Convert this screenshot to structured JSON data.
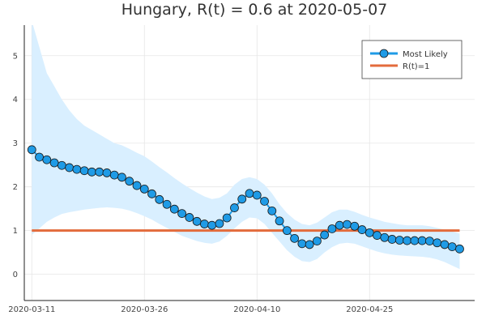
{
  "chart_data": {
    "type": "line",
    "title": "Hungary, R(t) = 0.6 at 2020-05-07",
    "xlabel": "",
    "ylabel": "",
    "x_start": "2020-03-11",
    "x_end": "2020-05-07",
    "xlim": [
      "2020-03-10",
      "2020-05-09"
    ],
    "ylim": [
      -0.6,
      5.7
    ],
    "xticks": [
      "2020-03-11",
      "2020-03-26",
      "2020-04-10",
      "2020-04-25"
    ],
    "yticks": [
      0,
      1,
      2,
      3,
      4,
      5
    ],
    "grid": true,
    "legend_position": "top-right",
    "series": [
      {
        "name": "Most Likely",
        "color": "#1f9be6",
        "marker": "circle",
        "values": [
          2.85,
          2.68,
          2.62,
          2.55,
          2.49,
          2.44,
          2.4,
          2.37,
          2.34,
          2.34,
          2.32,
          2.27,
          2.22,
          2.13,
          2.03,
          1.95,
          1.84,
          1.71,
          1.6,
          1.49,
          1.39,
          1.3,
          1.21,
          1.15,
          1.12,
          1.16,
          1.29,
          1.52,
          1.72,
          1.85,
          1.81,
          1.67,
          1.45,
          1.22,
          1.0,
          0.82,
          0.7,
          0.68,
          0.76,
          0.9,
          1.04,
          1.12,
          1.14,
          1.1,
          1.02,
          0.95,
          0.89,
          0.84,
          0.8,
          0.78,
          0.77,
          0.77,
          0.77,
          0.76,
          0.72,
          0.68,
          0.63,
          0.58
        ]
      },
      {
        "name": "R(t)=1",
        "color": "#e36b3c",
        "values": [
          1,
          1
        ]
      }
    ],
    "band": {
      "color": "#d9efff",
      "upper": [
        5.8,
        5.2,
        4.6,
        4.3,
        4.0,
        3.75,
        3.55,
        3.4,
        3.3,
        3.2,
        3.1,
        3.0,
        2.95,
        2.87,
        2.78,
        2.7,
        2.58,
        2.45,
        2.33,
        2.2,
        2.08,
        1.97,
        1.87,
        1.78,
        1.72,
        1.75,
        1.85,
        2.05,
        2.18,
        2.22,
        2.18,
        2.05,
        1.85,
        1.6,
        1.4,
        1.25,
        1.15,
        1.12,
        1.18,
        1.3,
        1.42,
        1.48,
        1.48,
        1.43,
        1.36,
        1.3,
        1.25,
        1.2,
        1.17,
        1.14,
        1.12,
        1.12,
        1.12,
        1.1,
        1.06,
        1.02,
        0.98,
        0.93
      ],
      "lower": [
        0.9,
        1.05,
        1.2,
        1.3,
        1.38,
        1.42,
        1.45,
        1.48,
        1.5,
        1.52,
        1.53,
        1.52,
        1.5,
        1.46,
        1.4,
        1.33,
        1.25,
        1.15,
        1.06,
        0.97,
        0.88,
        0.82,
        0.76,
        0.72,
        0.7,
        0.75,
        0.88,
        1.05,
        1.2,
        1.3,
        1.28,
        1.15,
        0.95,
        0.75,
        0.55,
        0.4,
        0.3,
        0.28,
        0.35,
        0.5,
        0.62,
        0.7,
        0.72,
        0.7,
        0.64,
        0.58,
        0.52,
        0.48,
        0.45,
        0.43,
        0.42,
        0.41,
        0.4,
        0.38,
        0.34,
        0.28,
        0.2,
        0.12
      ]
    }
  }
}
